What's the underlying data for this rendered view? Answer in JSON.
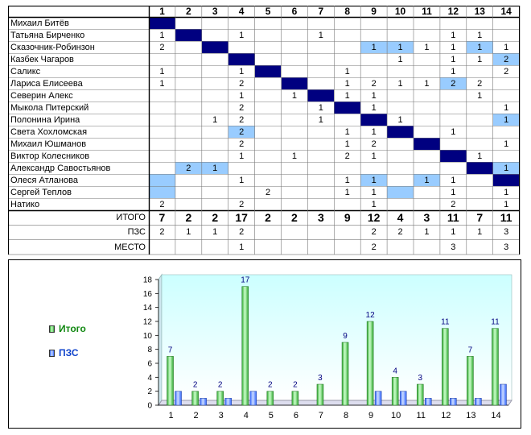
{
  "colors": {
    "diagonal": "#000080",
    "highlight": "#99ccff",
    "plot_bg_top": "#ccffff",
    "plot_bg_bottom": "#ffffff",
    "total_series": "#33aa33",
    "total_series_light": "#ccffcc",
    "pzs_series": "#3366ff",
    "pzs_series_light": "#ccddff",
    "label_text": "#000080"
  },
  "table": {
    "columns": [
      "1",
      "2",
      "3",
      "4",
      "5",
      "6",
      "7",
      "8",
      "9",
      "10",
      "11",
      "12",
      "13",
      "14"
    ],
    "players": [
      "Михаил Битёв",
      "Татьяна Бирченко",
      "Сказочник-Робинзон",
      "Казбек Чагаров",
      "Саликс",
      "Лариса Елисеева",
      "Северин Алекс",
      "Мыкола Питерский",
      "Полонина Ирина",
      "Света Хохломская",
      "Михаил Юшманов",
      "Виктор Колесников",
      "Александр Савостьянов",
      "Олеся Атланова",
      "Сергей Теплов",
      "Натико"
    ],
    "rows": [
      [
        "",
        "",
        "",
        "",
        "",
        "",
        "",
        "",
        "",
        "",
        "",
        "",
        "",
        ""
      ],
      [
        "1",
        "",
        "",
        "1",
        "",
        "",
        "1",
        "",
        "",
        "",
        "",
        "1",
        "1",
        ""
      ],
      [
        "2",
        "",
        "",
        "",
        "",
        "",
        "",
        "",
        "1",
        "1",
        "1",
        "1",
        "1",
        "1"
      ],
      [
        "",
        "",
        "",
        "",
        "",
        "",
        "",
        "",
        "",
        "1",
        "",
        "1",
        "1",
        "2"
      ],
      [
        "1",
        "",
        "",
        "1",
        "",
        "",
        "",
        "1",
        "",
        "",
        "",
        "1",
        "",
        "2"
      ],
      [
        "1",
        "",
        "",
        "2",
        "",
        "",
        "",
        "1",
        "2",
        "1",
        "1",
        "2",
        "2",
        ""
      ],
      [
        "",
        "",
        "",
        "1",
        "",
        "1",
        "",
        "1",
        "1",
        "",
        "",
        "",
        "1",
        ""
      ],
      [
        "",
        "",
        "",
        "2",
        "",
        "",
        "1",
        "",
        "1",
        "",
        "",
        "",
        "",
        "1"
      ],
      [
        "",
        "",
        "1",
        "2",
        "",
        "",
        "1",
        "",
        "",
        "1",
        "",
        "",
        "",
        "1"
      ],
      [
        "",
        "",
        "",
        "2",
        "",
        "",
        "",
        "1",
        "1",
        "",
        "",
        "1",
        "",
        ""
      ],
      [
        "",
        "",
        "",
        "2",
        "",
        "",
        "",
        "1",
        "2",
        "",
        "",
        "",
        "",
        "1"
      ],
      [
        "",
        "",
        "",
        "1",
        "",
        "1",
        "",
        "2",
        "1",
        "",
        "",
        "",
        "1",
        ""
      ],
      [
        "",
        "2",
        "1",
        "",
        "",
        "",
        "",
        "",
        "",
        "",
        "",
        "",
        "",
        "1"
      ],
      [
        "",
        "",
        "",
        "1",
        "",
        "",
        "",
        "1",
        "1",
        "",
        "1",
        "1",
        "",
        ""
      ],
      [
        "",
        "",
        "",
        "",
        "2",
        "",
        "",
        "1",
        "1",
        "",
        "",
        "1",
        "",
        "1"
      ],
      [
        "2",
        "",
        "",
        "2",
        "",
        "",
        "",
        "",
        "1",
        "",
        "",
        "2",
        "",
        "1"
      ]
    ],
    "diagonal_cells": [
      [
        0,
        0
      ],
      [
        1,
        1
      ],
      [
        2,
        2
      ],
      [
        3,
        3
      ],
      [
        4,
        4
      ],
      [
        5,
        5
      ],
      [
        6,
        6
      ],
      [
        7,
        7
      ],
      [
        8,
        8
      ],
      [
        9,
        9
      ],
      [
        10,
        10
      ],
      [
        11,
        11
      ],
      [
        12,
        12
      ],
      [
        13,
        13
      ]
    ],
    "highlight_cells": [
      [
        2,
        8
      ],
      [
        2,
        9
      ],
      [
        2,
        12
      ],
      [
        3,
        13
      ],
      [
        5,
        11
      ],
      [
        8,
        13
      ],
      [
        9,
        3
      ],
      [
        12,
        1
      ],
      [
        12,
        2
      ],
      [
        12,
        13
      ],
      [
        13,
        0
      ],
      [
        13,
        8
      ],
      [
        13,
        10
      ],
      [
        14,
        0
      ],
      [
        14,
        9
      ]
    ],
    "summary": [
      {
        "label": "ИТОГО",
        "values": [
          "7",
          "2",
          "2",
          "17",
          "2",
          "2",
          "3",
          "9",
          "12",
          "4",
          "3",
          "11",
          "7",
          "11"
        ]
      },
      {
        "label": "ПЗС",
        "values": [
          "2",
          "1",
          "1",
          "2",
          "",
          "",
          "",
          "",
          "2",
          "2",
          "1",
          "1",
          "1",
          "3"
        ]
      },
      {
        "label": "МЕСТО",
        "values": [
          "",
          "",
          "",
          "1",
          "",
          "",
          "",
          "",
          "2",
          "",
          "",
          "3",
          "",
          "3"
        ]
      }
    ]
  },
  "chart_data": {
    "type": "bar",
    "categories": [
      "1",
      "2",
      "3",
      "4",
      "5",
      "6",
      "7",
      "8",
      "9",
      "10",
      "11",
      "12",
      "13",
      "14"
    ],
    "series": [
      {
        "name": "Итого",
        "values": [
          7,
          2,
          2,
          17,
          2,
          2,
          3,
          9,
          12,
          4,
          3,
          11,
          7,
          11
        ],
        "labels": [
          "7",
          "2",
          "2",
          "17",
          "2",
          "2",
          "3",
          "9",
          "12",
          "4",
          "3",
          "11",
          "7",
          "11"
        ]
      },
      {
        "name": "ПЗС",
        "values": [
          2,
          1,
          1,
          2,
          0,
          0,
          0,
          0,
          2,
          2,
          1,
          1,
          1,
          3
        ]
      }
    ],
    "ylim": [
      0,
      18
    ],
    "yticks": [
      "0",
      "2",
      "4",
      "6",
      "8",
      "10",
      "12",
      "14",
      "16",
      "18"
    ],
    "ytick_values": [
      0,
      2,
      4,
      6,
      8,
      10,
      12,
      14,
      16,
      18
    ],
    "grid": false,
    "legend_position": "left"
  }
}
